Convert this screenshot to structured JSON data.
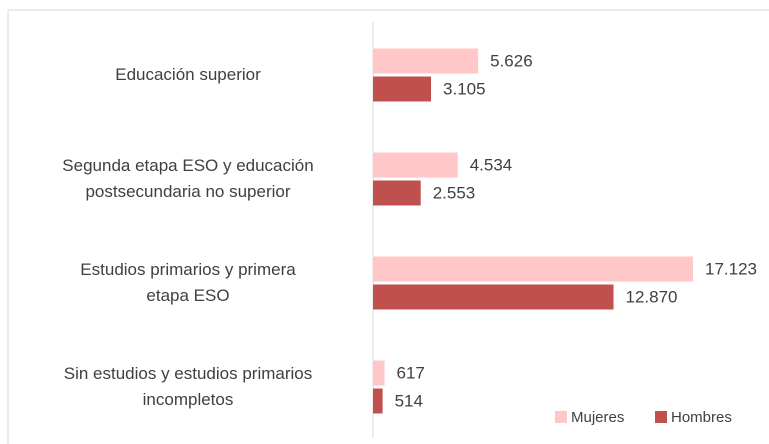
{
  "chart_data": {
    "type": "bar",
    "orientation": "horizontal",
    "categories": [
      "Educación superior",
      "Segunda etapa ESO y educación\npostsecundaria no superior",
      "Estudios primarios y primera\netapa ESO",
      "Sin estudios y estudios primarios\nincompletos"
    ],
    "series": [
      {
        "name": "Mujeres",
        "color": "#ffc7c7",
        "values": [
          5626,
          4534,
          17123,
          617
        ],
        "value_labels": [
          "5.626",
          "4.534",
          "17.123",
          "617"
        ]
      },
      {
        "name": "Hombres",
        "color": "#c0504d",
        "values": [
          3105,
          2553,
          12870,
          514
        ],
        "value_labels": [
          "3.105",
          "2.553",
          "12.870",
          "514"
        ]
      }
    ],
    "legend": "bottom-right"
  }
}
